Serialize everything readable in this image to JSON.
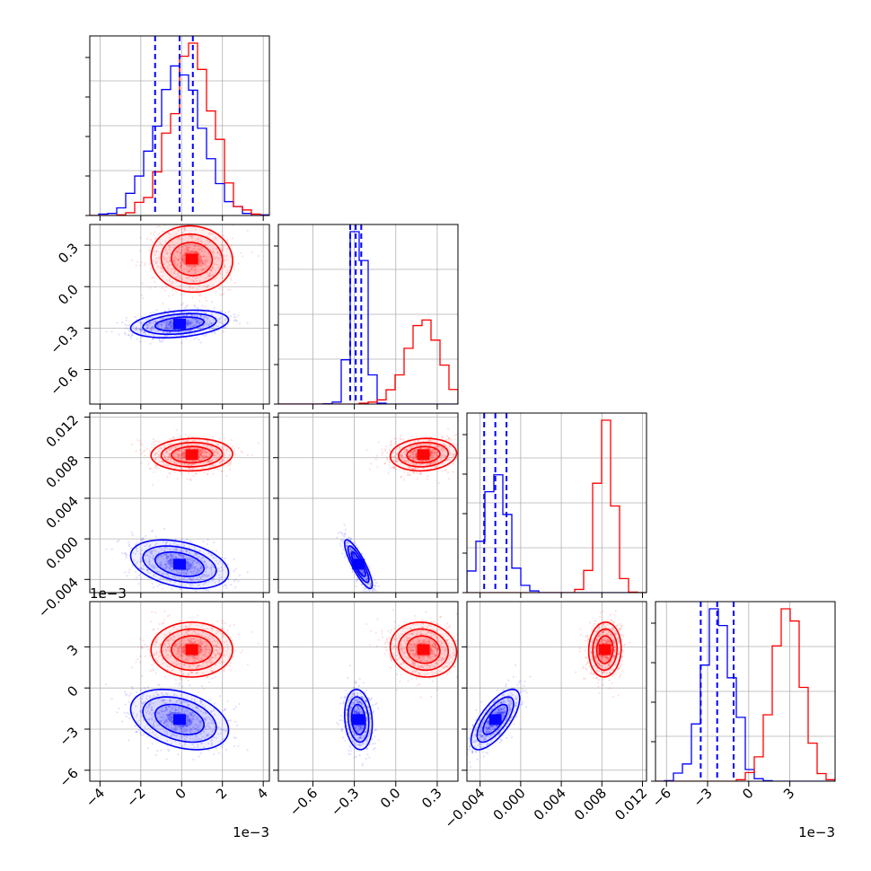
{
  "chart_data": {
    "type": "corner",
    "title": "",
    "colors": {
      "series_a": "#0000ff",
      "series_b": "#ff0000"
    },
    "grid": true,
    "parameters": [
      {
        "range": [
          -4.5,
          4.3
        ],
        "ticks": [
          -4,
          -2,
          0,
          2,
          4
        ],
        "tick_labels": [
          "−4",
          "−2",
          "0",
          "2",
          "4"
        ],
        "offset_text": "1e−3"
      },
      {
        "range": [
          -0.85,
          0.45
        ],
        "ticks": [
          -0.6,
          -0.3,
          0.0,
          0.3
        ],
        "tick_labels": [
          "−0.6",
          "−0.3",
          "0.0",
          "0.3"
        ],
        "offset_text": ""
      },
      {
        "range": [
          -0.0053,
          0.0124
        ],
        "ticks": [
          -0.004,
          0.0,
          0.004,
          0.008,
          0.012
        ],
        "tick_labels": [
          "−0.004",
          "0.000",
          "0.004",
          "0.008",
          "0.012"
        ],
        "offset_text": ""
      },
      {
        "range": [
          -6.8,
          6.3
        ],
        "ticks": [
          -6,
          -3,
          0,
          3
        ],
        "tick_labels": [
          "−6",
          "−3",
          "0",
          "3"
        ],
        "offset_text": "1e−3"
      }
    ],
    "series": [
      {
        "color": "#0000ff",
        "mean": [
          -0.1,
          -0.27,
          -0.0025,
          -2.3
        ],
        "std": [
          1.2,
          0.05,
          0.0012,
          1.1
        ],
        "quantiles": [
          [
            -1.3,
            -0.1,
            0.55
          ],
          [
            -0.33,
            -0.29,
            -0.25
          ],
          [
            -0.0036,
            -0.0025,
            -0.0014
          ],
          [
            -3.5,
            -2.3,
            -1.1
          ]
        ],
        "corr": {
          "1,0": 0.3,
          "2,0": -0.35,
          "2,1": -0.85,
          "3,0": -0.35,
          "3,1": -0.15,
          "3,2": 0.7
        }
      },
      {
        "color": "#ff0000",
        "mean": [
          0.5,
          0.2,
          0.0083,
          2.8
        ],
        "std": [
          1.0,
          0.12,
          0.0008,
          1.0
        ],
        "quantiles": [
          [
            -0.5,
            0.5,
            1.5
          ],
          [
            0.08,
            0.2,
            0.32
          ],
          [
            0.0075,
            0.0083,
            0.0091
          ],
          [
            1.8,
            2.8,
            3.8
          ]
        ],
        "corr": {
          "1,0": -0.05,
          "2,0": 0.05,
          "2,1": 0.1,
          "3,0": 0.0,
          "3,1": -0.1,
          "3,2": 0.05
        }
      }
    ],
    "quantile_lines": {
      "color": "#0000ff",
      "style": "dashed",
      "levels": [
        0.16,
        0.5,
        0.84
      ]
    }
  }
}
